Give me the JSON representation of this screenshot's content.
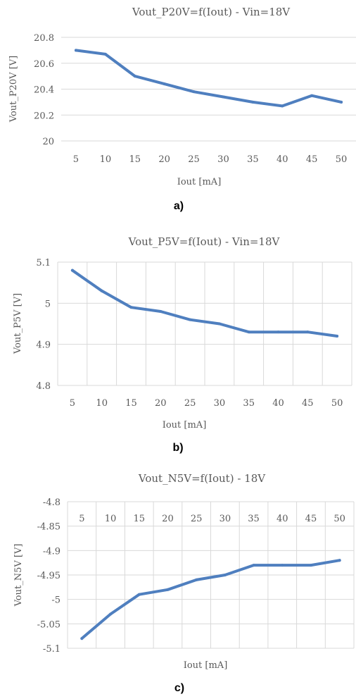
{
  "colors": {
    "series": "#4f7fbf",
    "grid": "#d9d9d9",
    "text": "#595959"
  },
  "chart_data": [
    {
      "type": "line",
      "caption": "a)",
      "title": "Vout_P20V=f(Iout) - Vin=18V",
      "xlabel": "Iout [mA]",
      "ylabel": "Vout_P20V [V]",
      "categories": [
        "5",
        "10",
        "15",
        "20",
        "25",
        "30",
        "35",
        "40",
        "45",
        "50"
      ],
      "values": [
        20.7,
        20.67,
        20.5,
        20.44,
        20.38,
        20.34,
        20.3,
        20.27,
        20.35,
        20.3
      ],
      "ylim": [
        20,
        20.8
      ],
      "yticks": [
        "20",
        "20.2",
        "20.4",
        "20.6",
        "20.8"
      ],
      "grid": "horizontal",
      "legend": "none"
    },
    {
      "type": "line",
      "caption": "b)",
      "title": "Vout_P5V=f(Iout) - Vin=18V",
      "xlabel": "Iout [mA]",
      "ylabel": "Vout_P5V [V]",
      "categories": [
        "5",
        "10",
        "15",
        "20",
        "25",
        "30",
        "35",
        "40",
        "45",
        "50"
      ],
      "values": [
        5.08,
        5.03,
        4.99,
        4.98,
        4.96,
        4.95,
        4.93,
        4.93,
        4.93,
        4.92
      ],
      "ylim": [
        4.8,
        5.1
      ],
      "yticks": [
        "4.8",
        "4.9",
        "5",
        "5.1"
      ],
      "grid": "both",
      "legend": "none"
    },
    {
      "type": "line",
      "caption": "c)",
      "title": "Vout_N5V=f(Iout) - 18V",
      "xlabel": "Iout [mA]",
      "ylabel": "Vout_N5V [V]",
      "categories": [
        "5",
        "10",
        "15",
        "20",
        "25",
        "30",
        "35",
        "40",
        "45",
        "50"
      ],
      "values": [
        -5.08,
        -5.03,
        -4.99,
        -4.98,
        -4.96,
        -4.95,
        -4.93,
        -4.93,
        -4.93,
        -4.92
      ],
      "ylim": [
        -5.1,
        -4.8
      ],
      "yticks": [
        "-5.1",
        "-5.05",
        "-5",
        "-4.95",
        "-4.9",
        "-4.85",
        "-4.8"
      ],
      "x_axis_labels_position": "top",
      "grid": "both",
      "legend": "none"
    }
  ]
}
